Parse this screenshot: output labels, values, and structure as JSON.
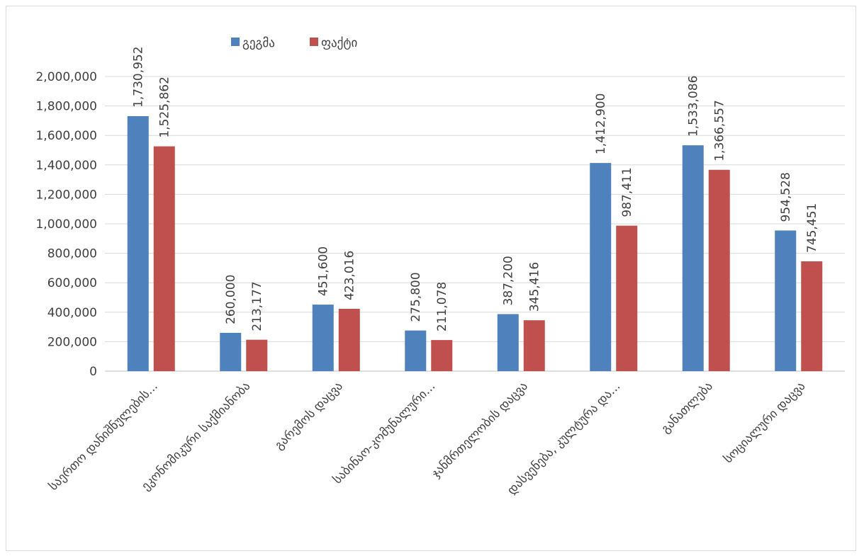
{
  "chart_data": {
    "type": "bar",
    "title": "",
    "xlabel": "",
    "ylabel": "",
    "ylim": [
      0,
      2000000
    ],
    "yticks": [
      "0",
      "200,000",
      "400,000",
      "600,000",
      "800,000",
      "1,000,000",
      "1,200,000",
      "1,400,000",
      "1,600,000",
      "1,800,000",
      "2,000,000"
    ],
    "grid": true,
    "legend_position": "top",
    "categories": [
      "საერთო დანიშნულების...",
      "ეკონომიკური საქმიანობა",
      "გარემოს დაცვა",
      "საბინაო-კომუნალური...",
      "ჯანმრთელობის დაცვა",
      "დასვენება, კულტურა და...",
      "განათლება",
      "სოციალური დაცვა"
    ],
    "series": [
      {
        "name": "გეგმა",
        "color": "#4f81bd",
        "values": [
          1730952,
          260000,
          451600,
          275800,
          387200,
          1412900,
          1533086,
          954528
        ],
        "labels": [
          "1,730,952",
          "260,000",
          "451,600",
          "275,800",
          "387,200",
          "1,412,900",
          "1,533,086",
          "954,528"
        ]
      },
      {
        "name": "ფაქტი",
        "color": "#c0504d",
        "values": [
          1525862,
          213177,
          423016,
          211078,
          345416,
          987411,
          1366557,
          745451
        ],
        "labels": [
          "1,525,862",
          "213,177",
          "423,016",
          "211,078",
          "345,416",
          "987,411",
          "1,366,557",
          "745,451"
        ]
      }
    ]
  }
}
